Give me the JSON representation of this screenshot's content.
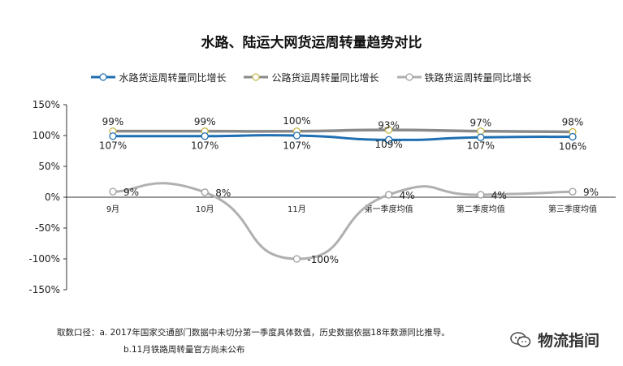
{
  "chart_data": {
    "type": "line",
    "title": "水路、陆运大网货运周转量趋势对比",
    "categories": [
      "9月",
      "10月",
      "11月",
      "第一季度均值",
      "第二季度均值",
      "第三季度均值"
    ],
    "ylim": [
      -150,
      150
    ],
    "yticks": [
      150,
      100,
      50,
      0,
      -50,
      -100,
      -150
    ],
    "ytick_labels": [
      "150%",
      "100%",
      "50%",
      "0%",
      "-50%",
      "-100%",
      "-150%"
    ],
    "grid": false,
    "legend_position": "top",
    "series": [
      {
        "name": "水路货运周转量同比增长",
        "color": "#1f6fb2",
        "values": [
          99,
          99,
          100,
          93,
          97,
          98
        ],
        "labels": [
          "99%",
          "99%",
          "100%",
          "93%",
          "97%",
          "98%"
        ],
        "label_position": "above"
      },
      {
        "name": "公路货运周转量同比增长",
        "color": "#c9b84a",
        "values": [
          107,
          107,
          107,
          109,
          107,
          106
        ],
        "labels": [
          "107%",
          "107%",
          "107%",
          "109%",
          "107%",
          "106%"
        ],
        "label_position": "below"
      },
      {
        "name": "铁路货运周转量同比增长",
        "color": "#9e9e9e",
        "values": [
          9,
          8,
          -100,
          4,
          4,
          9
        ],
        "labels": [
          "9%",
          "8%",
          "-100%",
          "4%",
          "4%",
          "9%"
        ],
        "label_position": "right"
      }
    ]
  },
  "notes": {
    "line1": "取数口径：a. 2017年国家交通部门数据中未切分第一季度具体数值，历史数据依据18年数源同比推导。",
    "line2": "b.11月铁路周转量官方尚未公布"
  },
  "watermark": {
    "text": "物流指间",
    "icon": "chat-bubbles-icon"
  }
}
